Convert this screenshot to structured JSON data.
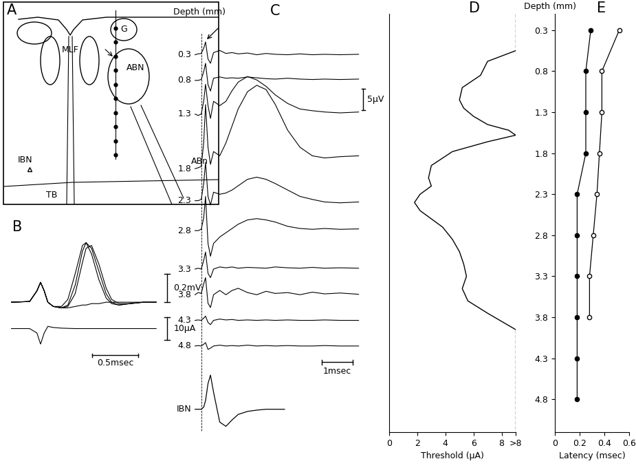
{
  "panels": {
    "A": {
      "letter": "A",
      "structures": [
        "G",
        "MLF",
        "ABN",
        "IBN",
        "ABn",
        "TB"
      ],
      "track_depths": [
        0.3,
        0.8,
        1.3,
        1.8,
        2.3,
        2.8,
        3.3,
        3.8,
        4.3,
        4.8
      ]
    },
    "B": {
      "letter": "B",
      "t_ms": [
        0,
        0.2,
        0.28,
        0.32,
        0.36,
        0.4,
        0.46,
        0.55,
        0.62,
        0.7,
        0.78,
        0.82,
        0.88,
        0.96,
        1.04,
        1.1,
        1.18,
        1.3,
        1.45,
        1.59
      ],
      "voltage_sweeps_mV": [
        [
          0,
          0.005,
          0.08,
          0.14,
          0.08,
          0.0,
          -0.03,
          -0.04,
          -0.02,
          0.12,
          0.36,
          0.42,
          0.38,
          0.22,
          0.06,
          0.0,
          -0.02,
          -0.01,
          0,
          0
        ],
        [
          0,
          0.005,
          0.08,
          0.14,
          0.08,
          0.0,
          -0.03,
          -0.03,
          0.02,
          0.2,
          0.4,
          0.42,
          0.34,
          0.16,
          0.03,
          -0.01,
          -0.02,
          -0.01,
          0,
          0
        ],
        [
          0,
          0.005,
          0.08,
          0.14,
          0.08,
          0.0,
          -0.03,
          -0.04,
          -0.03,
          0.06,
          0.28,
          0.38,
          0.4,
          0.27,
          0.1,
          0.02,
          -0.01,
          -0.01,
          0,
          0
        ],
        [
          0,
          0.005,
          0.08,
          0.14,
          0.08,
          0.0,
          -0.03,
          -0.04,
          -0.04,
          -0.03,
          -0.02,
          -0.02,
          -0.01,
          -0.01,
          0,
          0,
          0,
          0,
          0,
          0
        ]
      ],
      "current_uA": [
        0,
        0,
        -2,
        -7,
        -2,
        1,
        0.5,
        0.2,
        0.1,
        0,
        0,
        0,
        0,
        0,
        0,
        0,
        0,
        0,
        0,
        0
      ],
      "scale_bars": {
        "voltage": {
          "value": 0.2,
          "label": "0.2mV"
        },
        "current": {
          "value": 10,
          "label": "10μA"
        },
        "time": {
          "value": 0.5,
          "label": "0.5msec"
        }
      }
    },
    "C": {
      "letter": "C",
      "depth_label": "Depth (mm)",
      "t_ms": [
        0,
        0.1,
        0.2,
        0.28,
        0.34,
        0.42,
        0.5,
        0.6,
        0.8,
        1.0,
        1.2,
        1.4,
        1.7,
        2.0,
        2.3,
        2.6,
        3.0,
        3.4,
        3.8,
        4.2,
        4.7,
        5.3
      ],
      "dashed_line_ms": 0.2,
      "traces": [
        {
          "depth": 0.3,
          "values": [
            0,
            0.2,
            0.3,
            1.5,
            3,
            -1,
            -2,
            0.5,
            1,
            0.3,
            0.5,
            0.2,
            0.4,
            0,
            0.3,
            0.1,
            0,
            0.2,
            0,
            0.1,
            0,
            0.1
          ]
        },
        {
          "depth": 0.8,
          "values": [
            0,
            0,
            0.2,
            2,
            4,
            -1,
            -2.5,
            0.5,
            0.8,
            0.5,
            0.6,
            0.5,
            0.8,
            0.6,
            0.4,
            0.3,
            0.5,
            0.3,
            0.2,
            0.3,
            0.2,
            0.3
          ]
        },
        {
          "depth": 1.3,
          "values": [
            0,
            -0.3,
            0,
            3,
            7,
            2,
            -1,
            3,
            2,
            3,
            5.5,
            7.5,
            8.8,
            8,
            6.5,
            4.5,
            2.5,
            1.2,
            0.8,
            0.5,
            0.3,
            0.5
          ]
        },
        {
          "depth": 1.8,
          "values": [
            0,
            0.2,
            0.5,
            6,
            15,
            5,
            1,
            4,
            3,
            6,
            10,
            14,
            18,
            19.5,
            18.5,
            15,
            9,
            5,
            3,
            2.5,
            2.8,
            3
          ]
        },
        {
          "depth": 2.3,
          "values": [
            0,
            0,
            0.3,
            4,
            9,
            1,
            -1,
            2,
            1.5,
            1.8,
            2.5,
            3.5,
            5,
            5.5,
            5,
            4,
            2.5,
            1,
            0.3,
            -0.3,
            -0.5,
            -0.3
          ]
        },
        {
          "depth": 2.8,
          "values": [
            0,
            0,
            0.3,
            3,
            8,
            -3,
            -6,
            -3,
            -1.5,
            -0.5,
            0.5,
            1.5,
            2.5,
            2.8,
            2.5,
            2,
            1,
            0.5,
            0.3,
            0.5,
            0.3,
            0.4
          ]
        },
        {
          "depth": 3.3,
          "values": [
            0,
            0.2,
            0,
            2,
            4,
            -1,
            -2,
            0,
            0.5,
            0.3,
            0.5,
            0.2,
            0.4,
            0.3,
            0.2,
            0.5,
            0.3,
            0.2,
            0.4,
            0.2,
            0.3,
            0.2
          ]
        },
        {
          "depth": 3.8,
          "values": [
            0,
            0.5,
            0.3,
            2.5,
            4,
            -2,
            -3,
            0,
            1,
            0,
            1,
            1.5,
            0.5,
            0,
            0.8,
            0.3,
            0.5,
            0,
            0.6,
            0.2,
            0.4,
            0.1
          ]
        },
        {
          "depth": 4.3,
          "values": [
            0,
            0.1,
            0,
            0.5,
            1,
            -0.5,
            -1,
            0,
            0.3,
            0.1,
            0.2,
            0,
            0.1,
            0,
            0.1,
            0,
            0.1,
            0,
            0,
            0.1,
            0,
            0
          ]
        },
        {
          "depth": 4.8,
          "values": [
            0,
            0.1,
            0,
            0.4,
            0.8,
            -0.8,
            -0.5,
            0,
            0.2,
            0,
            0.1,
            0,
            0.2,
            0,
            0.1,
            0,
            0.1,
            0,
            0,
            0.1,
            0,
            0
          ]
        }
      ],
      "ibn": {
        "label": "IBN",
        "t_ms": [
          0,
          0.1,
          0.2,
          0.28,
          0.34,
          0.42,
          0.5,
          0.6,
          0.8,
          1.0,
          1.2,
          1.4,
          1.7,
          2.0,
          2.3,
          2.6,
          2.9
        ],
        "values": [
          0,
          0,
          0,
          0.5,
          2,
          6,
          8,
          4,
          -3,
          -4,
          -2.5,
          -1.2,
          -0.5,
          -0.2,
          0,
          0,
          0
        ]
      },
      "scale_bars": {
        "voltage": {
          "value": 5,
          "label": "5μV"
        },
        "time": {
          "value": 1,
          "label": "1msec"
        }
      }
    }
  },
  "chart_data": [
    {
      "letter": "D",
      "type": "line",
      "xlabel": "Threshold (μA)",
      "color": "#000000",
      "xlim": [
        0,
        9
      ],
      "xticks": [
        0,
        2,
        4,
        6,
        8,
        {
          "value": 9,
          "label": ">8"
        }
      ],
      "ylim": [
        5.2,
        0.1
      ],
      "tick_labels": "x",
      "series": [
        {
          "line_style": "dashed",
          "x": [
            9,
            9
          ],
          "y": [
            0.1,
            0.55
          ]
        },
        {
          "line_style": "solid",
          "x": [
            9,
            7,
            6.5,
            5.2,
            5.0,
            5.3,
            6,
            7,
            8.5,
            9,
            7,
            4.5,
            3,
            2.8,
            3,
            2.2,
            1.8,
            2.2,
            3,
            3.8,
            4.5,
            5,
            5.3,
            5.5,
            5.2,
            5.6,
            7,
            9
          ],
          "y": [
            0.55,
            0.68,
            0.85,
            1.0,
            1.15,
            1.25,
            1.35,
            1.45,
            1.52,
            1.58,
            1.66,
            1.78,
            1.95,
            2.1,
            2.2,
            2.3,
            2.4,
            2.5,
            2.6,
            2.7,
            2.85,
            3.0,
            3.15,
            3.3,
            3.45,
            3.6,
            3.75,
            3.95
          ]
        },
        {
          "line_style": "dashed",
          "x": [
            9,
            9
          ],
          "y": [
            3.95,
            5.2
          ]
        }
      ]
    },
    {
      "letter": "E",
      "type": "line",
      "xlabel": "Latency (msec)",
      "ylabel": "Depth (mm)",
      "color": "#000000",
      "xlim": [
        0,
        0.6
      ],
      "xticks": [
        0,
        0.2,
        0.4,
        0.6
      ],
      "ylim": [
        5.2,
        0.1
      ],
      "yticks": [
        0.3,
        0.8,
        1.3,
        1.8,
        2.3,
        2.8,
        3.3,
        3.8,
        4.3,
        4.8
      ],
      "series": [
        {
          "marker": "filled_circle",
          "line_style": "solid",
          "x": [
            0.29,
            0.25,
            0.25,
            0.25,
            0.18,
            0.18,
            0.18,
            0.18,
            0.18,
            0.18
          ],
          "y": [
            0.3,
            0.8,
            1.3,
            1.8,
            2.3,
            2.8,
            3.3,
            3.8,
            4.3,
            4.8
          ]
        },
        {
          "marker": "open_circle",
          "line_style": "solid",
          "x": [
            0.52,
            0.38,
            0.38,
            0.36,
            0.34,
            0.31,
            0.28,
            0.28
          ],
          "y": [
            0.3,
            0.8,
            1.3,
            1.8,
            2.3,
            2.8,
            3.3,
            3.8
          ]
        }
      ]
    }
  ]
}
